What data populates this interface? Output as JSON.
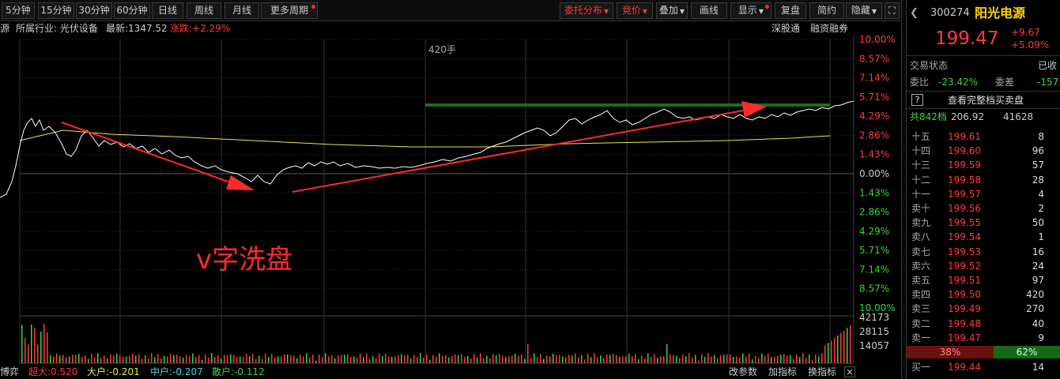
{
  "toolbar": {
    "periods": [
      "5分钟",
      "15分钟",
      "30分钟",
      "60分钟",
      "日线",
      "周线",
      "月线",
      "更多周期"
    ],
    "right_buttons": [
      "委托分布",
      "竞价",
      "叠加",
      "画线",
      "显示",
      "复盘",
      "简约",
      "隐藏"
    ]
  },
  "info": {
    "source_label": "源",
    "industry": "所属行业: 光伏设备",
    "latest": "最新:1347.52",
    "change": "涨跌:+2.29%",
    "right_links": [
      "深股通",
      "融资融券"
    ]
  },
  "chart": {
    "volume_marker": "420手",
    "annotation": "v字洗盘",
    "right_pct_labels": [
      "10.00%",
      "8.57%",
      "7.14%",
      "5.71%",
      "4.29%",
      "2.86%",
      "1.43%",
      "0.00%",
      "1.43%",
      "2.86%",
      "4.29%",
      "5.71%",
      "7.14%",
      "8.57%",
      "10.00%"
    ],
    "volume_labels": [
      "42173",
      "28115",
      "14057"
    ]
  },
  "bottom": {
    "left": "博弈",
    "indicators": [
      {
        "label": "超大:0.520",
        "color": "#ff3b3b"
      },
      {
        "label": "大户:-0.201",
        "color": "#e8e84a"
      },
      {
        "label": "中户:-0.207",
        "color": "#3ad7e8"
      },
      {
        "label": "散户:-0.112",
        "color": "#3cd43c"
      }
    ],
    "actions": [
      "改参数",
      "加指标",
      "换指标"
    ]
  },
  "stock": {
    "code": "300274",
    "name": "阳光电源",
    "price": "199.47",
    "change": "+9.67",
    "change_pct": "+5.09%",
    "status_label": "交易状态",
    "status_value": "已收",
    "weibi_label": "委比",
    "weibi_value": "-23.42%",
    "weicha_label": "委差",
    "weicha_value": "-157",
    "full_book_label": "查看完整档买卖盘",
    "help": "?",
    "total_label": "共842档",
    "total_price": "206.92",
    "total_vol": "41628",
    "sell_levels": [
      {
        "name": "十五",
        "price": "199.61",
        "vol": "8"
      },
      {
        "name": "十四",
        "price": "199.60",
        "vol": "96"
      },
      {
        "name": "十三",
        "price": "199.59",
        "vol": "57"
      },
      {
        "name": "十二",
        "price": "199.58",
        "vol": "28"
      },
      {
        "name": "十一",
        "price": "199.57",
        "vol": "4"
      },
      {
        "name": "卖十",
        "price": "199.56",
        "vol": "2"
      },
      {
        "name": "卖九",
        "price": "199.55",
        "vol": "50"
      },
      {
        "name": "卖八",
        "price": "199.54",
        "vol": "1"
      },
      {
        "name": "卖七",
        "price": "199.53",
        "vol": "16"
      },
      {
        "name": "卖六",
        "price": "199.52",
        "vol": "24"
      },
      {
        "name": "卖五",
        "price": "199.51",
        "vol": "97"
      },
      {
        "name": "卖四",
        "price": "199.50",
        "vol": "420"
      },
      {
        "name": "卖三",
        "price": "199.49",
        "vol": "270"
      },
      {
        "name": "卖二",
        "price": "199.48",
        "vol": "40"
      },
      {
        "name": "卖一",
        "price": "199.47",
        "vol": "9"
      }
    ],
    "ratio_sell": "38%",
    "ratio_buy": "62%",
    "buy_levels": [
      {
        "name": "买一",
        "price": "199.44",
        "vol": "14"
      }
    ]
  }
}
